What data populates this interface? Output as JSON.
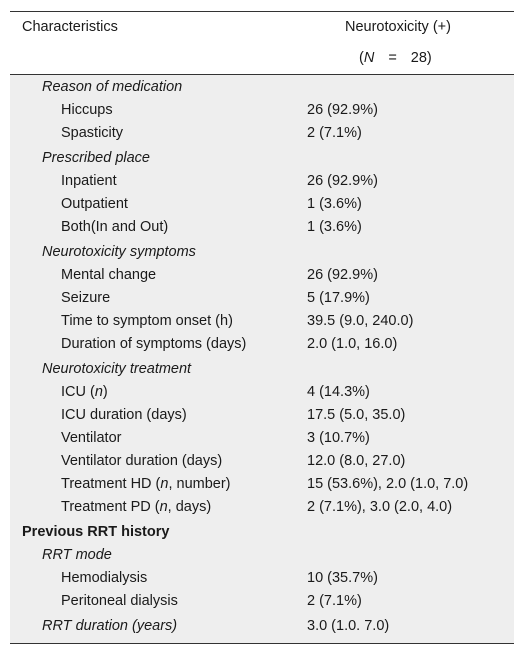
{
  "header": {
    "characteristics_label": "Characteristics",
    "column_label": "Neurotoxicity (+)",
    "n_prefix": "(",
    "n_symbol": "N",
    "n_equals": " = ",
    "n_value": "28)"
  },
  "rows": [
    {
      "label": "Reason of medication",
      "value": ""
    },
    {
      "label": "Hiccups",
      "value": "26 (92.9%)"
    },
    {
      "label": "Spasticity",
      "value": "2 (7.1%)"
    },
    {
      "label": "Prescribed place",
      "value": ""
    },
    {
      "label": "Inpatient",
      "value": "26 (92.9%)"
    },
    {
      "label": "Outpatient",
      "value": "1 (3.6%)"
    },
    {
      "label": "Both(In and Out)",
      "value": "1 (3.6%)"
    },
    {
      "label": "Neurotoxicity symptoms",
      "value": ""
    },
    {
      "label": "Mental change",
      "value": "26 (92.9%)"
    },
    {
      "label": "Seizure",
      "value": "5 (17.9%)"
    },
    {
      "label": "Time to symptom onset (h)",
      "value": "39.5 (9.0, 240.0)"
    },
    {
      "label": "Duration of symptoms (days)",
      "value": "2.0 (1.0, 16.0)"
    },
    {
      "label": "Neurotoxicity treatment",
      "value": ""
    },
    {
      "label_pre": "ICU (",
      "label_it": "n",
      "label_post": ")",
      "value": "4 (14.3%)"
    },
    {
      "label": "ICU duration (days)",
      "value": "17.5 (5.0, 35.0)"
    },
    {
      "label": "Ventilator",
      "value": "3 (10.7%)"
    },
    {
      "label": "Ventilator duration (days)",
      "value": "12.0 (8.0, 27.0)"
    },
    {
      "label_pre": "Treatment HD (",
      "label_it": "n",
      "label_post": ", number)",
      "value": "15 (53.6%), 2.0 (1.0, 7.0)"
    },
    {
      "label_pre": "Treatment PD (",
      "label_it": "n",
      "label_post": ", days)",
      "value": "2 (7.1%), 3.0 (2.0, 4.0)"
    },
    {
      "label": "Previous RRT history",
      "value": ""
    },
    {
      "label": "RRT mode",
      "value": ""
    },
    {
      "label": "Hemodialysis",
      "value": "10 (35.7%)"
    },
    {
      "label": "Peritoneal dialysis",
      "value": "2 (7.1%)"
    },
    {
      "label": "RRT duration (years)",
      "value": "3.0 (1.0. 7.0)"
    }
  ]
}
